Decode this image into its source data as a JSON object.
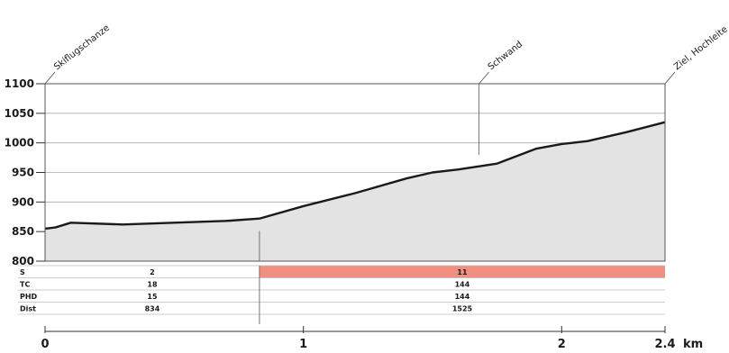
{
  "chart_data": {
    "type": "area",
    "title": "",
    "xlabel": "km",
    "ylabel": "",
    "xlim": [
      0,
      2.4
    ],
    "ylim": [
      800,
      1100
    ],
    "yticks": [
      800,
      850,
      900,
      950,
      1000,
      1050,
      1100
    ],
    "xticks": [
      {
        "value": 0,
        "label": "0"
      },
      {
        "value": 1,
        "label": "1"
      },
      {
        "value": 2,
        "label": "2"
      },
      {
        "value": 2.4,
        "label": "2.4"
      }
    ],
    "grid": true,
    "series": [
      {
        "x": [
          0,
          0.04,
          0.1,
          0.3,
          0.5,
          0.7,
          0.83,
          1.0,
          1.2,
          1.4,
          1.5,
          1.6,
          1.75,
          1.9,
          2.0,
          2.1,
          2.25,
          2.4
        ],
        "y": [
          855,
          857,
          865,
          862,
          865,
          868,
          872,
          893,
          915,
          940,
          950,
          955,
          965,
          990,
          998,
          1003,
          1018,
          1035
        ]
      }
    ],
    "annotations": [
      {
        "label": "Skiflugschanze",
        "x": 0,
        "y": 1100
      },
      {
        "label": "Schwand",
        "x": 1.68,
        "y": 1100
      },
      {
        "label": "Ziel, Hochleite",
        "x": 2.4,
        "y": 1100
      }
    ],
    "marker_lines": [
      {
        "x": 0.83,
        "from": 800,
        "to": 851
      },
      {
        "x": 1.68,
        "from": 980,
        "to": 1100
      }
    ],
    "table": {
      "row_labels": [
        "S",
        "TC",
        "PHD",
        "Dist"
      ],
      "segments": [
        {
          "x0": 0,
          "x1": 0.83,
          "values": [
            "2",
            "18",
            "15",
            "834"
          ],
          "highlight": false
        },
        {
          "x0": 0.83,
          "x1": 2.4,
          "values": [
            "11",
            "144",
            "144",
            "1525"
          ],
          "highlight": true
        }
      ],
      "highlight_color": "#f08f80"
    },
    "colors": {
      "fill": "#e3e3e3",
      "line": "#1a1a1a",
      "grid": "#a9a9a9"
    }
  }
}
